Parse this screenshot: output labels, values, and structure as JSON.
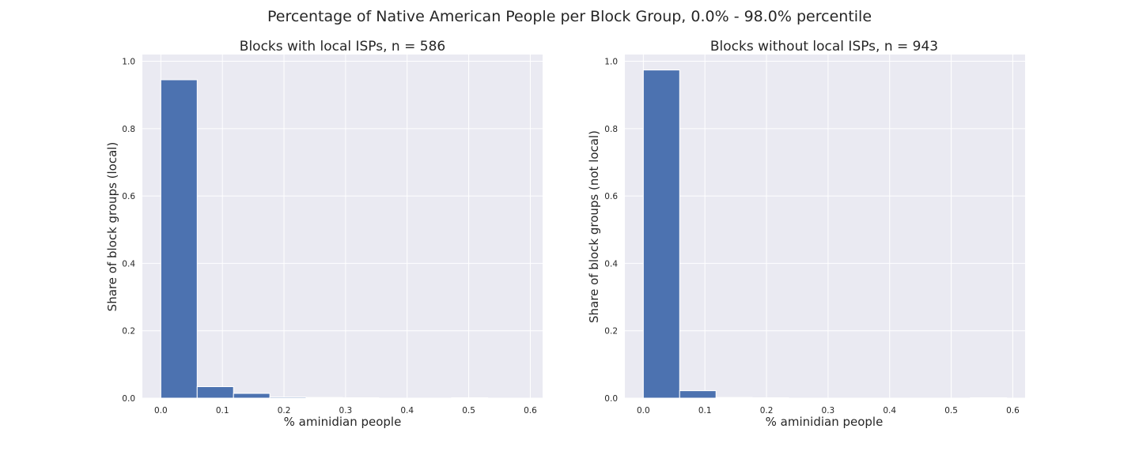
{
  "figure": {
    "title": "Percentage of Native American People per Block Group, 0.0% - 98.0% percentile"
  },
  "style": {
    "plot_background": "#eaeaf2",
    "grid_color": "#ffffff",
    "bar_color": "#4c72b0"
  },
  "chart_data": [
    {
      "type": "bar",
      "title": "Blocks with local ISPs, n = 586",
      "xlabel": "% aminidian people",
      "ylabel": "Share of block groups (local)",
      "xlim": [
        -0.03,
        0.62
      ],
      "ylim": [
        0,
        1.02
      ],
      "xticks": [
        "0.0",
        "0.1",
        "0.2",
        "0.3",
        "0.4",
        "0.5",
        "0.6"
      ],
      "yticks": [
        "0.0",
        "0.2",
        "0.4",
        "0.6",
        "0.8",
        "1.0"
      ],
      "bin_edges": [
        0.0,
        0.059,
        0.118,
        0.177,
        0.236,
        0.295,
        0.354,
        0.413,
        0.472,
        0.531,
        0.59
      ],
      "values": [
        0.945,
        0.034,
        0.014,
        0.003,
        0.002,
        0.001,
        0.0,
        0.0,
        0.001,
        0.0
      ],
      "grid": true
    },
    {
      "type": "bar",
      "title": "Blocks without local ISPs, n = 943",
      "xlabel": "% aminidian people",
      "ylabel": "Share of block groups (not local)",
      "xlim": [
        -0.03,
        0.62
      ],
      "ylim": [
        0,
        1.02
      ],
      "xticks": [
        "0.0",
        "0.1",
        "0.2",
        "0.3",
        "0.4",
        "0.5",
        "0.6"
      ],
      "yticks": [
        "0.0",
        "0.2",
        "0.4",
        "0.6",
        "0.8",
        "1.0"
      ],
      "bin_edges": [
        0.0,
        0.059,
        0.118,
        0.177,
        0.236,
        0.295,
        0.354,
        0.413,
        0.472,
        0.531,
        0.59
      ],
      "values": [
        0.974,
        0.022,
        0.002,
        0.001,
        0.0,
        0.0,
        0.0,
        0.0,
        0.0,
        0.001
      ],
      "grid": true
    }
  ]
}
